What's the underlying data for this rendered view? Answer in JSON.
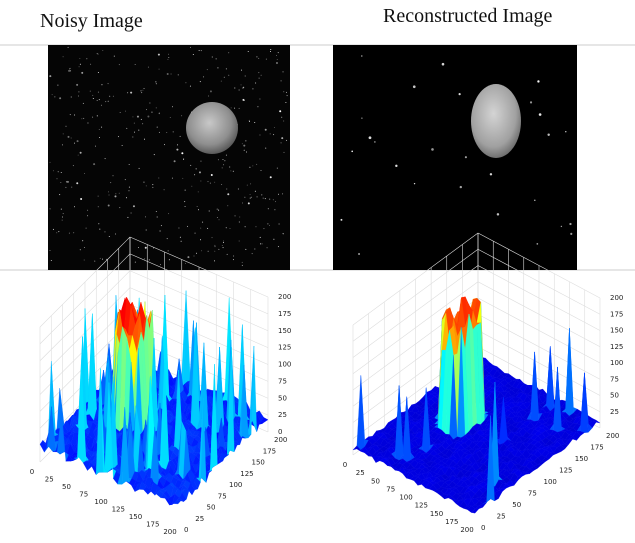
{
  "panels": [
    {
      "title": "Noisy Image",
      "xticks": [
        0,
        25,
        50,
        75,
        100,
        125,
        150,
        175,
        200
      ],
      "yticks": [
        0,
        25,
        50,
        75,
        100,
        125,
        150,
        175,
        200
      ],
      "zticks": [
        0,
        25,
        50,
        75,
        100,
        125,
        150,
        175,
        200
      ]
    },
    {
      "title": "Reconstructed Image",
      "xticks": [
        0,
        25,
        50,
        75,
        100,
        125,
        150,
        175,
        200
      ],
      "yticks": [
        0,
        25,
        50,
        75,
        100,
        125,
        150,
        175,
        200
      ],
      "zticks": [
        25,
        50,
        75,
        100,
        125,
        150,
        175,
        200
      ]
    }
  ]
}
